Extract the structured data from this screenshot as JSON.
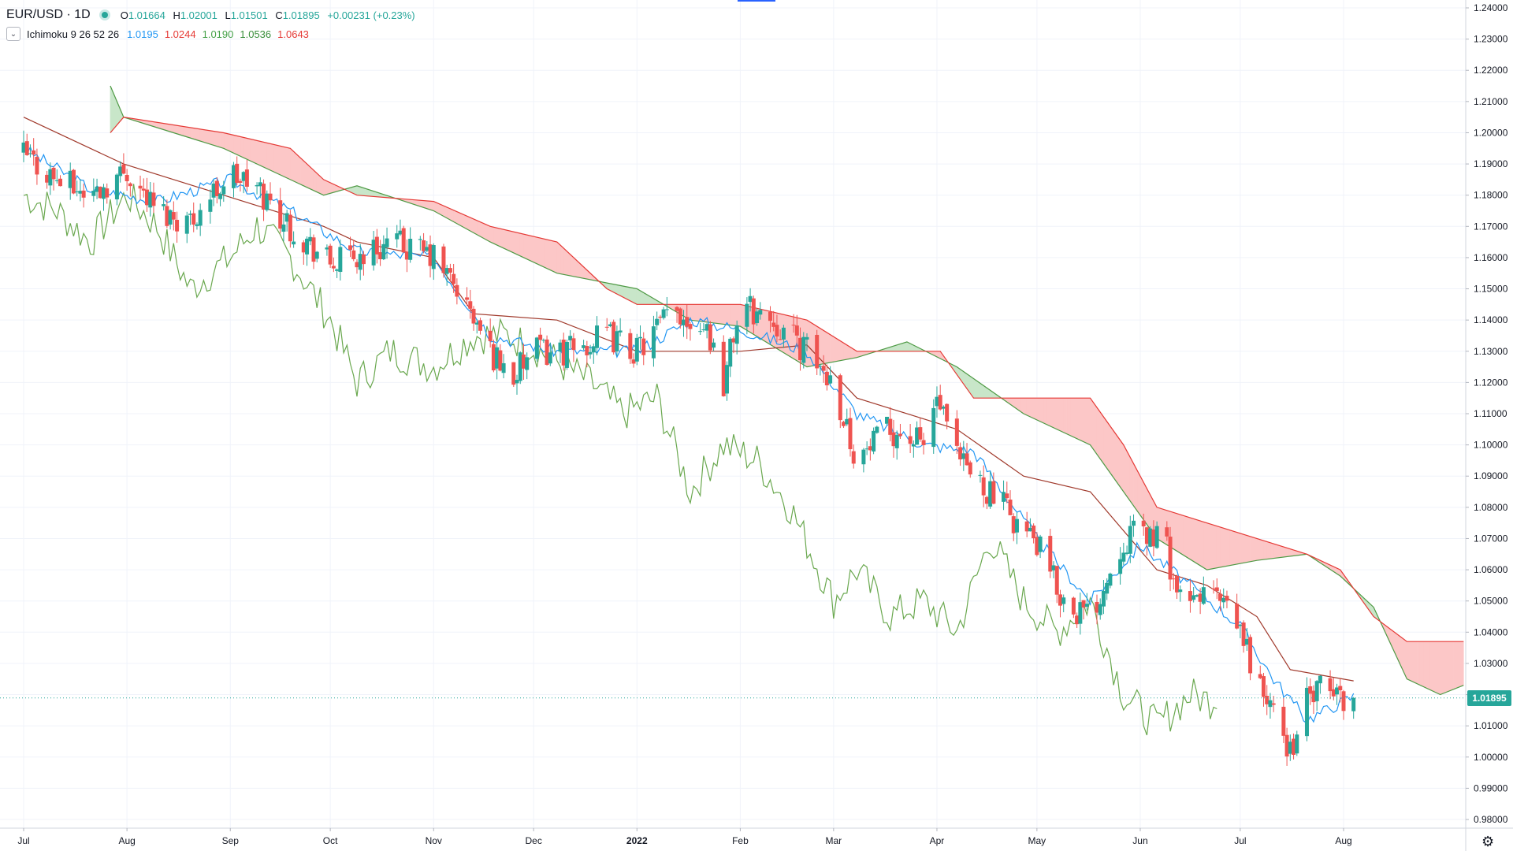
{
  "header": {
    "symbol": "EUR/USD · 1D",
    "open_label": "O",
    "open": "1.01664",
    "high_label": "H",
    "high": "1.02001",
    "low_label": "L",
    "low": "1.01501",
    "close_label": "C",
    "close": "1.01895",
    "change": "+0.00231 (+0.23%)"
  },
  "indicator": {
    "name": "Ichimoku 9 26 52 26",
    "values": [
      "1.0195",
      "1.0244",
      "1.0190",
      "1.0536",
      "1.0643"
    ],
    "colors": [
      "#2196f3",
      "#e53935",
      "#43a047",
      "#388e3c",
      "#e53935"
    ]
  },
  "price_tag": "1.01895",
  "colors": {
    "up": "#26a69a",
    "down": "#ef5350",
    "tenkan": "#2196f3",
    "kijun": "#a0392b",
    "chikou": "#6aa84f",
    "span_a": "#4f9a45",
    "span_b": "#e53935",
    "cloud_bear": "#fcc7c7",
    "cloud_bull": "#c8e6c9",
    "grid": "#f0f3fa",
    "axis_text": "#131722"
  },
  "chart_data": {
    "type": "candlestick",
    "symbol": "EUR/USD",
    "interval": "1D",
    "y_axis": {
      "min": 0.98,
      "max": 1.24,
      "step": 0.01,
      "ticks": [
        "1.24000",
        "1.23000",
        "1.22000",
        "1.21000",
        "1.20000",
        "1.19000",
        "1.18000",
        "1.17000",
        "1.16000",
        "1.15000",
        "1.14000",
        "1.13000",
        "1.12000",
        "1.11000",
        "1.10000",
        "1.09000",
        "1.08000",
        "1.07000",
        "1.06000",
        "1.05000",
        "1.04000",
        "1.03000",
        "1.02000",
        "1.01000",
        "1.00000",
        "0.99000",
        "0.98000"
      ]
    },
    "x_axis": {
      "labels": [
        "Jul",
        "Aug",
        "Sep",
        "Oct",
        "Nov",
        "Dec",
        "2022",
        "Feb",
        "Mar",
        "Apr",
        "May",
        "Jun",
        "Jul",
        "Aug"
      ],
      "label_days": [
        0,
        31,
        62,
        92,
        123,
        153,
        184,
        215,
        243,
        274,
        304,
        335,
        365,
        396
      ]
    },
    "last_price": 1.01895,
    "candles_summary": "approx. daily candles from late June 2021 to early Aug 2022",
    "close_path": [
      [
        0,
        1.193
      ],
      [
        10,
        1.185
      ],
      [
        20,
        1.18
      ],
      [
        31,
        1.188
      ],
      [
        40,
        1.175
      ],
      [
        50,
        1.172
      ],
      [
        62,
        1.187
      ],
      [
        70,
        1.182
      ],
      [
        80,
        1.17
      ],
      [
        92,
        1.158
      ],
      [
        100,
        1.16
      ],
      [
        110,
        1.165
      ],
      [
        123,
        1.16
      ],
      [
        130,
        1.15
      ],
      [
        140,
        1.13
      ],
      [
        147,
        1.122
      ],
      [
        153,
        1.13
      ],
      [
        165,
        1.13
      ],
      [
        175,
        1.135
      ],
      [
        184,
        1.13
      ],
      [
        195,
        1.143
      ],
      [
        205,
        1.138
      ],
      [
        210,
        1.12
      ],
      [
        215,
        1.145
      ],
      [
        225,
        1.14
      ],
      [
        235,
        1.13
      ],
      [
        243,
        1.12
      ],
      [
        250,
        1.095
      ],
      [
        260,
        1.105
      ],
      [
        270,
        1.1
      ],
      [
        274,
        1.115
      ],
      [
        280,
        1.095
      ],
      [
        290,
        1.085
      ],
      [
        304,
        1.068
      ],
      [
        312,
        1.05
      ],
      [
        320,
        1.045
      ],
      [
        330,
        1.07
      ],
      [
        335,
        1.072
      ],
      [
        342,
        1.07
      ],
      [
        348,
        1.045
      ],
      [
        355,
        1.055
      ],
      [
        365,
        1.04
      ],
      [
        372,
        1.02
      ],
      [
        380,
        1.002
      ],
      [
        385,
        1.018
      ],
      [
        390,
        1.022
      ],
      [
        396,
        1.019
      ],
      [
        399,
        1.019
      ]
    ],
    "tenkan_path": [
      [
        0,
        1.195
      ],
      [
        20,
        1.182
      ],
      [
        40,
        1.178
      ],
      [
        62,
        1.185
      ],
      [
        80,
        1.175
      ],
      [
        100,
        1.162
      ],
      [
        123,
        1.16
      ],
      [
        140,
        1.135
      ],
      [
        160,
        1.13
      ],
      [
        184,
        1.13
      ],
      [
        200,
        1.14
      ],
      [
        215,
        1.137
      ],
      [
        235,
        1.13
      ],
      [
        250,
        1.11
      ],
      [
        270,
        1.1
      ],
      [
        285,
        1.098
      ],
      [
        304,
        1.07
      ],
      [
        320,
        1.05
      ],
      [
        335,
        1.068
      ],
      [
        350,
        1.055
      ],
      [
        365,
        1.042
      ],
      [
        375,
        1.025
      ],
      [
        385,
        1.012
      ],
      [
        399,
        1.0195
      ]
    ],
    "kijun_path": [
      [
        0,
        1.205
      ],
      [
        30,
        1.19
      ],
      [
        60,
        1.18
      ],
      [
        90,
        1.17
      ],
      [
        100,
        1.165
      ],
      [
        123,
        1.16
      ],
      [
        135,
        1.142
      ],
      [
        160,
        1.14
      ],
      [
        184,
        1.13
      ],
      [
        215,
        1.13
      ],
      [
        235,
        1.132
      ],
      [
        250,
        1.115
      ],
      [
        280,
        1.105
      ],
      [
        300,
        1.09
      ],
      [
        320,
        1.085
      ],
      [
        340,
        1.06
      ],
      [
        355,
        1.055
      ],
      [
        370,
        1.045
      ],
      [
        380,
        1.028
      ],
      [
        399,
        1.0244
      ]
    ],
    "chikou_path": [
      [
        0,
        1.18
      ],
      [
        10,
        1.175
      ],
      [
        20,
        1.165
      ],
      [
        31,
        1.18
      ],
      [
        40,
        1.17
      ],
      [
        50,
        1.15
      ],
      [
        62,
        1.16
      ],
      [
        70,
        1.17
      ],
      [
        80,
        1.16
      ],
      [
        92,
        1.14
      ],
      [
        100,
        1.12
      ],
      [
        110,
        1.13
      ],
      [
        123,
        1.125
      ],
      [
        135,
        1.135
      ],
      [
        145,
        1.135
      ],
      [
        155,
        1.13
      ],
      [
        170,
        1.12
      ],
      [
        180,
        1.11
      ],
      [
        190,
        1.115
      ],
      [
        200,
        1.085
      ],
      [
        210,
        1.1
      ],
      [
        220,
        1.095
      ],
      [
        230,
        1.08
      ],
      [
        243,
        1.05
      ],
      [
        250,
        1.06
      ],
      [
        260,
        1.045
      ],
      [
        270,
        1.05
      ],
      [
        280,
        1.04
      ],
      [
        290,
        1.07
      ],
      [
        300,
        1.05
      ],
      [
        310,
        1.04
      ],
      [
        320,
        1.05
      ],
      [
        330,
        1.02
      ],
      [
        340,
        1.01
      ],
      [
        350,
        1.02
      ],
      [
        356,
        1.018
      ],
      [
        358,
        1.02
      ]
    ],
    "span_a_path": [
      [
        26,
        1.215
      ],
      [
        30,
        1.205
      ],
      [
        60,
        1.195
      ],
      [
        90,
        1.18
      ],
      [
        100,
        1.183
      ],
      [
        123,
        1.175
      ],
      [
        140,
        1.165
      ],
      [
        160,
        1.155
      ],
      [
        184,
        1.15
      ],
      [
        200,
        1.14
      ],
      [
        215,
        1.138
      ],
      [
        235,
        1.125
      ],
      [
        250,
        1.128
      ],
      [
        265,
        1.133
      ],
      [
        280,
        1.125
      ],
      [
        300,
        1.11
      ],
      [
        320,
        1.1
      ],
      [
        340,
        1.07
      ],
      [
        355,
        1.06
      ],
      [
        370,
        1.063
      ],
      [
        385,
        1.065
      ],
      [
        395,
        1.058
      ],
      [
        405,
        1.048
      ],
      [
        415,
        1.025
      ],
      [
        425,
        1.02
      ],
      [
        432,
        1.023
      ]
    ],
    "span_b_path": [
      [
        26,
        1.2
      ],
      [
        30,
        1.205
      ],
      [
        60,
        1.2
      ],
      [
        80,
        1.195
      ],
      [
        90,
        1.185
      ],
      [
        100,
        1.18
      ],
      [
        123,
        1.178
      ],
      [
        140,
        1.17
      ],
      [
        160,
        1.165
      ],
      [
        175,
        1.15
      ],
      [
        184,
        1.145
      ],
      [
        215,
        1.145
      ],
      [
        235,
        1.14
      ],
      [
        250,
        1.13
      ],
      [
        275,
        1.13
      ],
      [
        285,
        1.115
      ],
      [
        320,
        1.115
      ],
      [
        330,
        1.1
      ],
      [
        340,
        1.08
      ],
      [
        355,
        1.075
      ],
      [
        385,
        1.065
      ],
      [
        395,
        1.06
      ],
      [
        405,
        1.045
      ],
      [
        415,
        1.037
      ],
      [
        432,
        1.037
      ]
    ]
  }
}
